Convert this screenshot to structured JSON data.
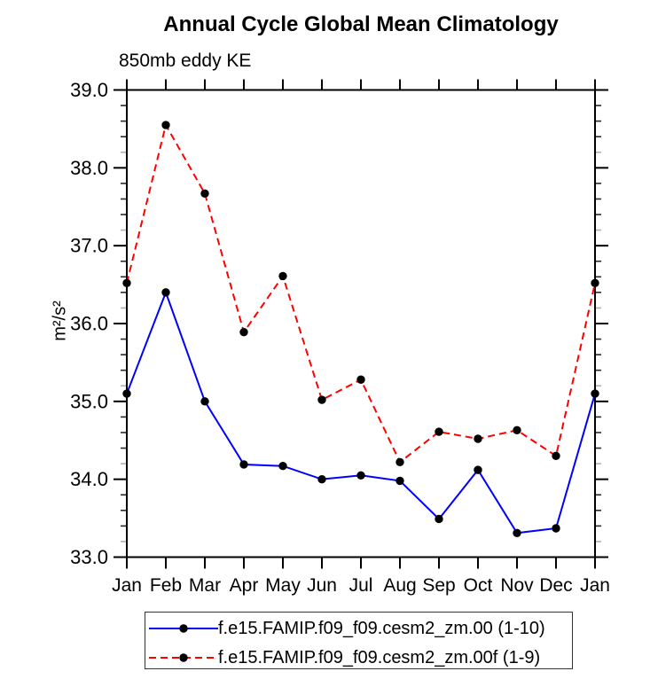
{
  "title": "Annual Cycle Global Mean Climatology",
  "subtitle": "850mb eddy KE",
  "ylabel": "m²/s²",
  "colors": {
    "series1": "#0000ff",
    "series2": "#ff0000",
    "marker": "#000000",
    "axis": "#000000",
    "minor_tick": "#2a2a2a",
    "minor_tick_light": "#b0b0b0"
  },
  "chart_data": {
    "type": "line",
    "title": "Annual Cycle Global Mean Climatology",
    "subtitle": "850mb eddy KE",
    "ylabel": "m²/s²",
    "categories": [
      "Jan",
      "Feb",
      "Mar",
      "Apr",
      "May",
      "Jun",
      "Jul",
      "Aug",
      "Sep",
      "Oct",
      "Nov",
      "Dec",
      "Jan"
    ],
    "series": [
      {
        "name": "f.e15.FAMIP.f09_f09.cesm2_zm.00 (1-10)",
        "color": "#0000ff",
        "style": "solid",
        "marker": "circle",
        "marker_color": "#000000",
        "values": [
          35.1,
          36.4,
          35.0,
          34.19,
          34.17,
          34.0,
          34.05,
          33.98,
          33.49,
          34.12,
          33.31,
          33.37,
          35.1
        ]
      },
      {
        "name": "f.e15.FAMIP.f09_f09.cesm2_zm.00f (1-9)",
        "color": "#ff0000",
        "style": "dashed",
        "marker": "circle",
        "marker_color": "#000000",
        "values": [
          36.52,
          38.55,
          37.67,
          35.89,
          36.61,
          35.02,
          35.28,
          34.22,
          34.61,
          34.52,
          34.63,
          34.3,
          36.52
        ]
      }
    ],
    "ylim": [
      33.0,
      39.0
    ],
    "ytick_labels": [
      "33.0",
      "34.0",
      "35.0",
      "36.0",
      "37.0",
      "38.0",
      "39.0"
    ],
    "ytick_major_interval": 1.0,
    "ytick_minor_interval": 0.2,
    "grid": false,
    "legend_position": "bottom"
  }
}
